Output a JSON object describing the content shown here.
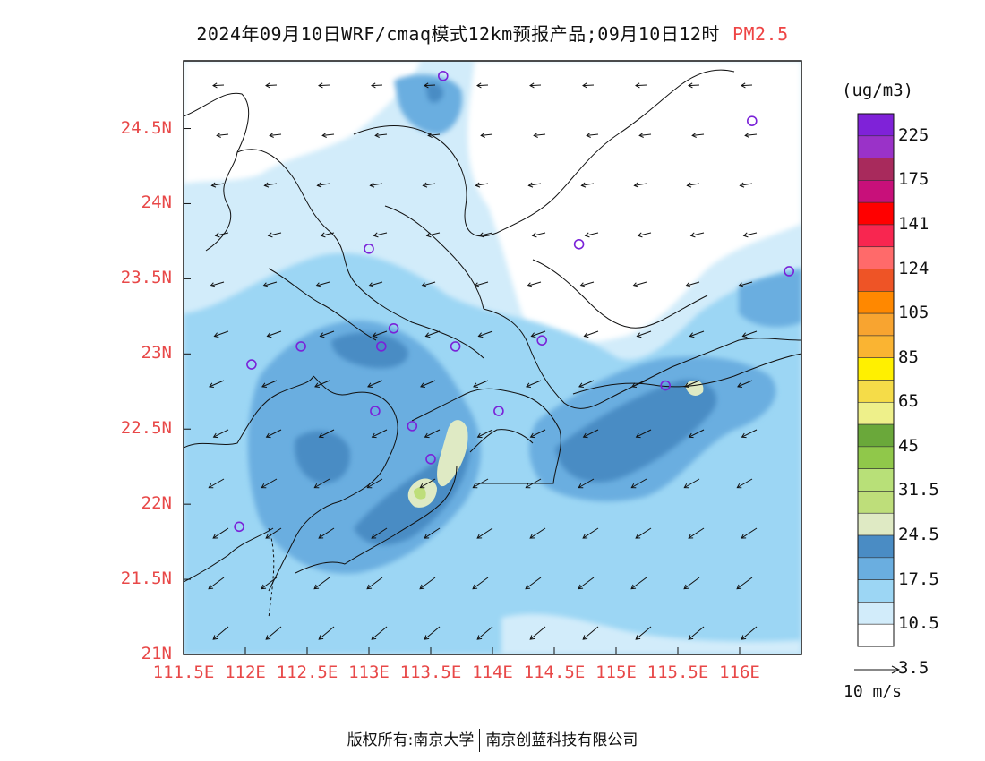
{
  "title": {
    "main": "2024年09月10日WRF/cmaq模式12km预报产品;09月10日12时",
    "variable": "PM2.5"
  },
  "axes": {
    "lat_labels": [
      "24.5N",
      "24N",
      "23.5N",
      "23N",
      "22.5N",
      "22N",
      "21.5N",
      "21N"
    ],
    "lat_values": [
      24.5,
      24.0,
      23.5,
      23.0,
      22.5,
      22.0,
      21.5,
      21.0
    ],
    "lon_labels": [
      "111.5E",
      "112E",
      "112.5E",
      "113E",
      "113.5E",
      "114E",
      "114.5E",
      "115E",
      "115.5E",
      "116E"
    ],
    "lon_values": [
      111.5,
      112.0,
      112.5,
      113.0,
      113.5,
      114.0,
      114.5,
      115.0,
      115.5,
      116.0
    ],
    "lon_range": [
      111.5,
      116.5
    ],
    "lat_range": [
      21.0,
      24.95
    ],
    "tick_color": "#e84848"
  },
  "colorbar": {
    "units": "(ug/m3)",
    "labels": [
      "225",
      "175",
      "141",
      "124",
      "105",
      "85",
      "65",
      "45",
      "31.5",
      "24.5",
      "17.5",
      "10.5",
      "3.5"
    ],
    "colors_top_to_bottom": [
      "#7f22d8",
      "#9a32c8",
      "#a82a5c",
      "#c8107a",
      "#ff0000",
      "#f82650",
      "#ff6a6a",
      "#ee5426",
      "#ff8800",
      "#f8a430",
      "#fab432",
      "#fff000",
      "#f5dc48",
      "#eef08a",
      "#6aa83a",
      "#90c84a",
      "#b8e078",
      "#bede7a",
      "#dfeac4",
      "#4a8cc4",
      "#6aaee0",
      "#9cd6f4",
      "#d2ecfa",
      "#ffffff"
    ]
  },
  "wind": {
    "reference_label": "10 m/s"
  },
  "map_data": {
    "field_color_scale": {
      "low": "#d2ecfa",
      "mid": "#9cd6f4",
      "high": "#6aaee0",
      "peak": "#4a8cc4",
      "max": "#dfeac4"
    },
    "monitoring_stations": [
      {
        "lon": 113.6,
        "lat": 24.85
      },
      {
        "lon": 116.1,
        "lat": 24.55
      },
      {
        "lon": 113.0,
        "lat": 23.7
      },
      {
        "lon": 114.7,
        "lat": 23.73
      },
      {
        "lon": 116.4,
        "lat": 23.55
      },
      {
        "lon": 112.45,
        "lat": 23.05
      },
      {
        "lon": 113.1,
        "lat": 23.05
      },
      {
        "lon": 113.2,
        "lat": 23.17
      },
      {
        "lon": 113.7,
        "lat": 23.05
      },
      {
        "lon": 114.4,
        "lat": 23.09
      },
      {
        "lon": 112.05,
        "lat": 22.93
      },
      {
        "lon": 113.05,
        "lat": 22.62
      },
      {
        "lon": 113.35,
        "lat": 22.52
      },
      {
        "lon": 113.5,
        "lat": 22.3
      },
      {
        "lon": 114.05,
        "lat": 22.62
      },
      {
        "lon": 115.4,
        "lat": 22.79
      },
      {
        "lon": 111.95,
        "lat": 21.85
      }
    ]
  },
  "footer": {
    "left": "版权所有:南京大学",
    "right": "南京创蓝科技有限公司"
  }
}
